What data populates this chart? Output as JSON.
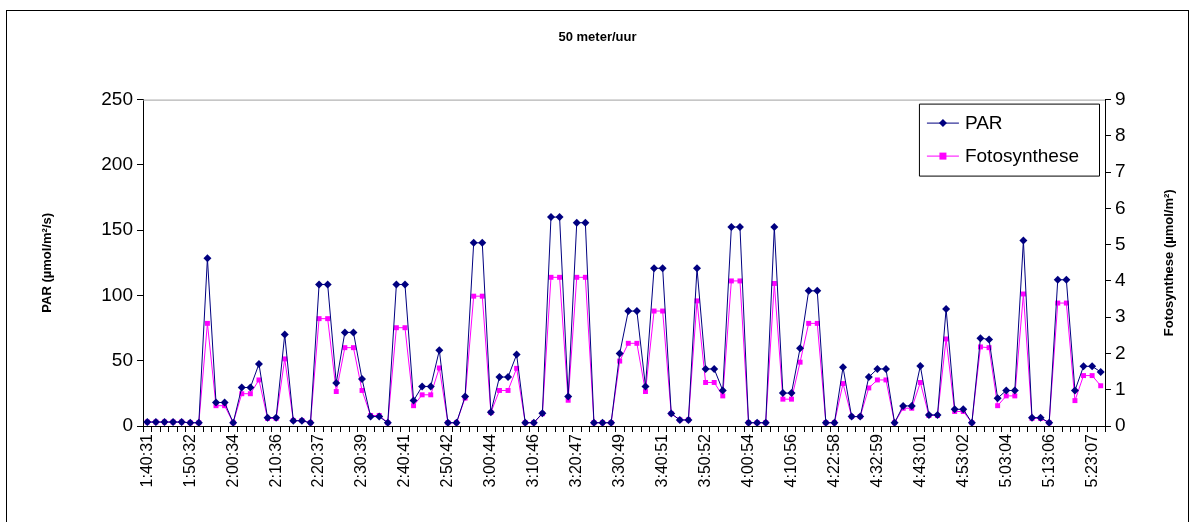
{
  "chart_data": {
    "type": "line",
    "title": "50 meter/uur",
    "ylabel": "PAR (µmol/m²/s)",
    "y2label": "Fotosynthese (µmol/m²)",
    "categories": [
      "1:40:31",
      null,
      null,
      null,
      null,
      "1:50:32",
      null,
      null,
      null,
      null,
      "2:00:34",
      null,
      null,
      null,
      null,
      "2:10:36",
      null,
      null,
      null,
      null,
      "2:20:37",
      null,
      null,
      null,
      null,
      "2:30:39",
      null,
      null,
      null,
      null,
      "2:40:41",
      null,
      null,
      null,
      null,
      "2:50:42",
      null,
      null,
      null,
      null,
      "3:00:44",
      null,
      null,
      null,
      null,
      "3:10:46",
      null,
      null,
      null,
      null,
      "3:20:47",
      null,
      null,
      null,
      null,
      "3:30:49",
      null,
      null,
      null,
      null,
      "3:40:51",
      null,
      null,
      null,
      null,
      "3:50:52",
      null,
      null,
      null,
      null,
      "4:00:54",
      null,
      null,
      null,
      null,
      "4:10:56",
      null,
      null,
      null,
      null,
      "4:22:58",
      null,
      null,
      null,
      null,
      "4:32:59",
      null,
      null,
      null,
      null,
      "4:43:01",
      null,
      null,
      null,
      null,
      "4:53:02",
      null,
      null,
      null,
      null,
      "5:03:04",
      null,
      null,
      null,
      null,
      "5:13:06",
      null,
      null,
      null,
      null,
      "5:23:07",
      null
    ],
    "series": [
      {
        "name": "PAR",
        "color": "#000080",
        "marker": "diamond",
        "values": [
          3,
          3,
          3,
          3,
          3,
          2.5,
          2.5,
          128.5,
          18,
          18,
          2.5,
          29.5,
          29.5,
          47.5,
          6.4,
          6.4,
          70,
          4,
          4,
          2.5,
          108.4,
          108.4,
          33,
          71.7,
          71.7,
          36,
          7.2,
          7.2,
          2.5,
          108.4,
          108.4,
          19.5,
          30.3,
          30.3,
          58,
          2.5,
          2.5,
          22.6,
          140.3,
          140.3,
          10.5,
          37.5,
          37.5,
          54.7,
          2.5,
          2.5,
          9.8,
          160,
          160,
          22.6,
          155.7,
          155.7,
          2.5,
          2.5,
          2.5,
          55.5,
          88,
          88,
          30.3,
          120.8,
          120.8,
          9.5,
          4.6,
          4.6,
          120.8,
          43.7,
          43.7,
          27.2,
          152.4,
          152.4,
          2.5,
          2.5,
          2.5,
          152.4,
          25.2,
          25.2,
          59.6,
          103.5,
          103.5,
          2.5,
          2.5,
          45,
          7.2,
          7.2,
          37.5,
          43.7,
          43.7,
          2.5,
          15.4,
          15.4,
          46,
          8.5,
          8.5,
          89.7,
          12.8,
          12.8,
          2.5,
          67.3,
          66.3,
          21.3,
          27.2,
          27.2,
          142,
          6.4,
          6.4,
          2.5,
          112,
          112,
          27.2,
          45.7,
          45.7,
          41.4
        ]
      },
      {
        "name": "Fotosynthese",
        "color": "#ff00ff",
        "marker": "square",
        "axis": "y2",
        "values": [
          0.11,
          0.11,
          0.11,
          0.11,
          0.11,
          0.09,
          0.09,
          2.83,
          0.56,
          0.56,
          0.09,
          0.89,
          0.89,
          1.27,
          0.21,
          0.21,
          1.85,
          0.15,
          0.15,
          0.09,
          2.96,
          2.96,
          0.95,
          2.16,
          2.16,
          0.98,
          0.29,
          0.29,
          0.09,
          2.71,
          2.71,
          0.56,
          0.86,
          0.86,
          1.6,
          0.09,
          0.09,
          0.77,
          3.58,
          3.58,
          0.37,
          0.98,
          0.98,
          1.59,
          0.09,
          0.09,
          0.34,
          4.1,
          4.1,
          0.71,
          4.1,
          4.1,
          0.09,
          0.09,
          0.09,
          1.79,
          2.28,
          2.28,
          0.95,
          3.17,
          3.17,
          0.34,
          0.17,
          0.17,
          3.45,
          1.2,
          1.2,
          0.83,
          4.0,
          4.0,
          0.09,
          0.09,
          0.09,
          3.93,
          0.74,
          0.74,
          1.76,
          2.83,
          2.83,
          0.09,
          0.09,
          1.17,
          0.26,
          0.26,
          1.05,
          1.27,
          1.27,
          0.09,
          0.49,
          0.49,
          1.2,
          0.29,
          0.29,
          2.4,
          0.4,
          0.4,
          0.09,
          2.18,
          2.16,
          0.56,
          0.83,
          0.83,
          3.64,
          0.21,
          0.21,
          0.09,
          3.39,
          3.39,
          0.7,
          1.39,
          1.39,
          1.11
        ]
      }
    ],
    "ylim": [
      0,
      250
    ],
    "yticks": [
      0,
      50,
      100,
      150,
      200,
      250
    ],
    "y2lim": [
      0,
      9
    ],
    "y2ticks": [
      0,
      1,
      2,
      3,
      4,
      5,
      6,
      7,
      8,
      9
    ],
    "grid": false,
    "legend": "top right"
  }
}
